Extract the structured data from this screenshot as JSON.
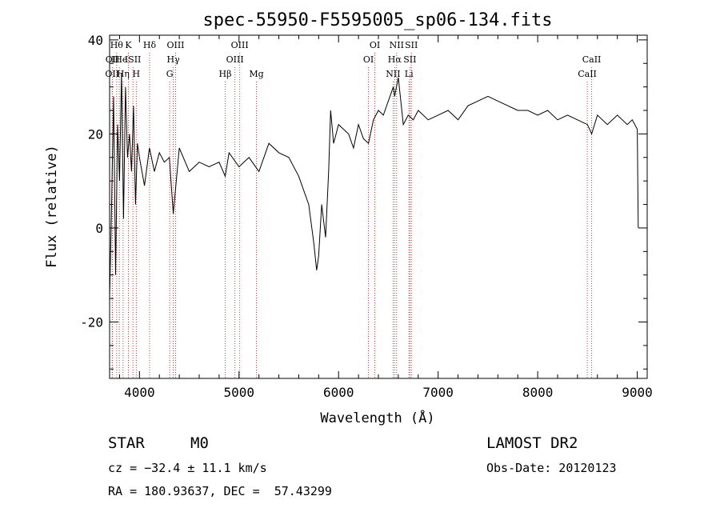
{
  "chart_data": {
    "type": "line",
    "title": "spec-55950-F5595005_sp06-134.fits",
    "xlabel": "Wavelength (Å)",
    "ylabel": "Flux (relative)",
    "xlim": [
      3700,
      9100
    ],
    "ylim": [
      -32,
      41
    ],
    "xticks": [
      4000,
      5000,
      6000,
      7000,
      8000,
      9000
    ],
    "yticks": [
      -20,
      0,
      20,
      40
    ],
    "series": [
      {
        "x": [
          3700,
          3720,
          3740,
          3760,
          3780,
          3800,
          3820,
          3840,
          3860,
          3880,
          3900,
          3920,
          3940,
          3960,
          3980,
          4000,
          4050,
          4100,
          4150,
          4200,
          4250,
          4300,
          4340,
          4400,
          4500,
          4600,
          4700,
          4800,
          4861,
          4900,
          5000,
          5100,
          5200,
          5300,
          5400,
          5500,
          5600,
          5700,
          5750,
          5780,
          5800,
          5830,
          5870,
          5900,
          5920,
          5950,
          6000,
          6050,
          6100,
          6150,
          6200,
          6250,
          6300,
          6350,
          6400,
          6450,
          6500,
          6550,
          6563,
          6600,
          6650,
          6700,
          6750,
          6800,
          6900,
          7000,
          7100,
          7200,
          7300,
          7400,
          7500,
          7600,
          7700,
          7800,
          7900,
          8000,
          8100,
          8200,
          8300,
          8400,
          8500,
          8542,
          8600,
          8700,
          8800,
          8900,
          8950,
          9000,
          9010
        ],
        "y": [
          -15,
          5,
          28,
          -10,
          22,
          10,
          33,
          2,
          30,
          15,
          20,
          12,
          26,
          5,
          18,
          15,
          9,
          17,
          12,
          16,
          14,
          15,
          3,
          17,
          12,
          14,
          13,
          14,
          11,
          16,
          13,
          15,
          12,
          18,
          16,
          15,
          11,
          5,
          -3,
          -9,
          -6,
          5,
          -2,
          12,
          25,
          18,
          22,
          21,
          20,
          17,
          22,
          19,
          18,
          23,
          25,
          24,
          27,
          30,
          28,
          32,
          22,
          24,
          23,
          25,
          23,
          24,
          25,
          23,
          26,
          27,
          28,
          27,
          26,
          25,
          25,
          24,
          25,
          23,
          24,
          23,
          22,
          20,
          24,
          22,
          24,
          22,
          23,
          21,
          0
        ]
      }
    ],
    "spectral_lines": [
      {
        "x": 3726,
        "label": "OII",
        "row": 3
      },
      {
        "x": 3729,
        "label": "OII",
        "row": 2
      },
      {
        "x": 3771,
        "label": "Hθ",
        "row": 1
      },
      {
        "x": 3798,
        "label": "IHe",
        "row": 2
      },
      {
        "x": 3835,
        "label": "Hη",
        "row": 3
      },
      {
        "x": 3889,
        "label": "K",
        "row": 1
      },
      {
        "x": 3934,
        "label": "ISII",
        "row": 2
      },
      {
        "x": 3968,
        "label": "H",
        "row": 3
      },
      {
        "x": 4102,
        "label": "Hδ",
        "row": 1
      },
      {
        "x": 4304,
        "label": "G",
        "row": 3
      },
      {
        "x": 4340,
        "label": "Hγ",
        "row": 2
      },
      {
        "x": 4363,
        "label": "OIII",
        "row": 1
      },
      {
        "x": 4861,
        "label": "Hβ",
        "row": 3
      },
      {
        "x": 4959,
        "label": "OIII",
        "row": 2
      },
      {
        "x": 5007,
        "label": "OIII",
        "row": 1
      },
      {
        "x": 5175,
        "label": "Mg",
        "row": 3
      },
      {
        "x": 6300,
        "label": "OI",
        "row": 2
      },
      {
        "x": 6364,
        "label": "OI",
        "row": 1
      },
      {
        "x": 6548,
        "label": "NII",
        "row": 3
      },
      {
        "x": 6563,
        "label": "Hα",
        "row": 2
      },
      {
        "x": 6583,
        "label": "NII",
        "row": 1
      },
      {
        "x": 6707,
        "label": "Li",
        "row": 3
      },
      {
        "x": 6716,
        "label": "SII",
        "row": 2
      },
      {
        "x": 6731,
        "label": "SII",
        "row": 1
      },
      {
        "x": 8498,
        "label": "CaII",
        "row": 3
      },
      {
        "x": 8542,
        "label": "CaII",
        "row": 2
      }
    ],
    "line_color": "#d23a3a",
    "spectrum_color": "#000000",
    "grid": false,
    "legend": "none"
  },
  "info": {
    "class": "STAR",
    "subclass": "M0",
    "survey": "LAMOST DR2",
    "cz": "cz = −32.4 ± 11.1 km/s",
    "obs_date": "Obs-Date: 20120123",
    "coords": "RA = 180.93637, DEC =  57.43299"
  }
}
